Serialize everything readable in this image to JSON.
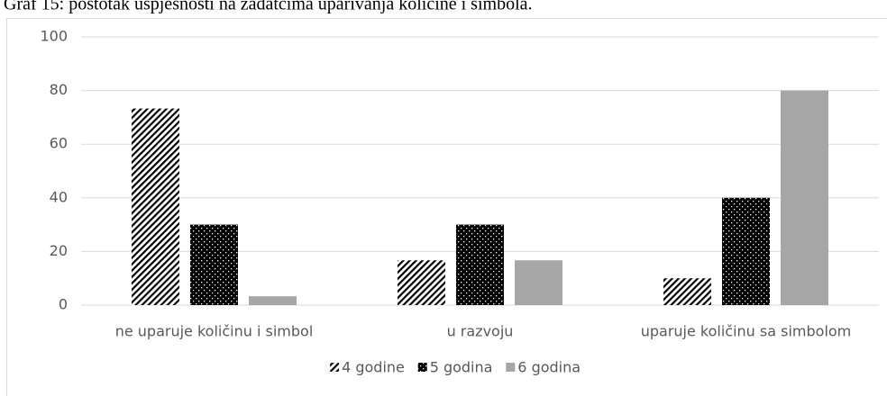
{
  "chart_data": {
    "type": "bar",
    "title": "Graf 15: postotak uspješnosti na zadatcima uparivanja količine i simbola.",
    "categories": [
      "ne uparuje količinu i simbol",
      "u razvoju",
      "uparuje količinu sa simbolom"
    ],
    "series": [
      {
        "name": "4 godine",
        "color": "#000000",
        "pattern": "hatch",
        "values": [
          73.3,
          16.7,
          10
        ]
      },
      {
        "name": "5 godina",
        "color": "#000000",
        "pattern": "dots",
        "values": [
          30,
          30,
          40
        ]
      },
      {
        "name": "6 godina",
        "color": "#a6a6a6",
        "pattern": "solid",
        "values": [
          3.3,
          16.7,
          80
        ]
      }
    ],
    "ylim": [
      0,
      100
    ],
    "yticks": [
      0,
      20,
      40,
      60,
      80,
      100
    ],
    "grid": true,
    "legend": "bottom"
  }
}
